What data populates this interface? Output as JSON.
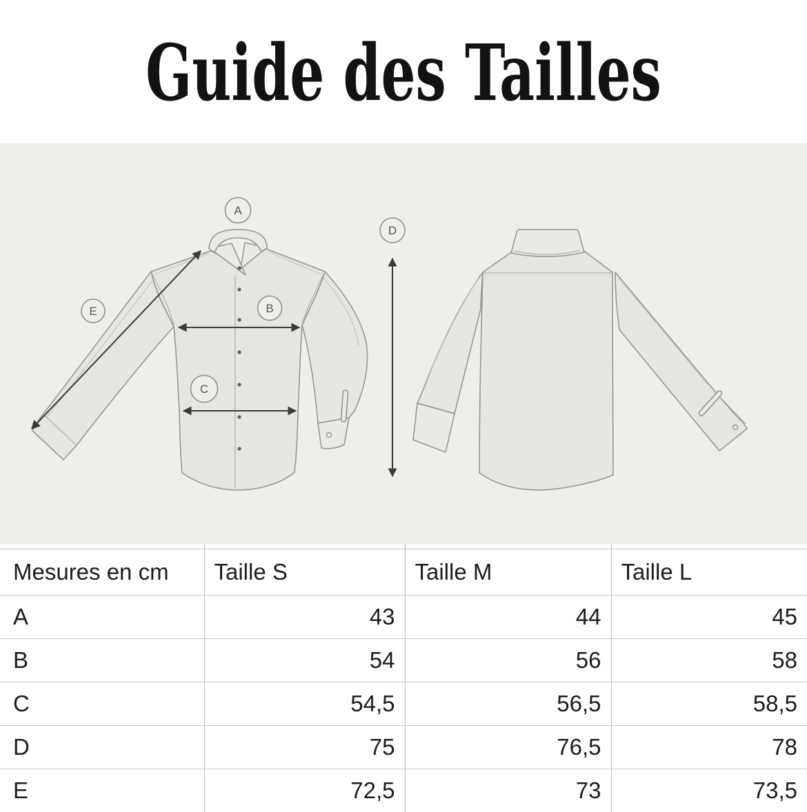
{
  "title": "Guide des Tailles",
  "diagram": {
    "markers": [
      {
        "label": "A"
      },
      {
        "label": "B"
      },
      {
        "label": "C"
      },
      {
        "label": "D"
      },
      {
        "label": "E"
      }
    ],
    "views": [
      "shirt-front",
      "shirt-back"
    ]
  },
  "table": {
    "columns": [
      "Mesures en cm",
      "Taille S",
      "Taille M",
      "Taille L"
    ],
    "rows": [
      {
        "label": "A",
        "values": [
          "43",
          "44",
          "45"
        ]
      },
      {
        "label": "B",
        "values": [
          "54",
          "56",
          "58"
        ]
      },
      {
        "label": "C",
        "values": [
          "54,5",
          "56,5",
          "58,5"
        ]
      },
      {
        "label": "D",
        "values": [
          "75",
          "76,5",
          "78"
        ]
      },
      {
        "label": "E",
        "values": [
          "72,5",
          "73",
          "73,5"
        ]
      }
    ]
  },
  "colors": {
    "panel_bg": "#efeee9",
    "shirt_fill": "#e6e5e0",
    "shirt_line": "#97958e",
    "arrow": "#3b3a37",
    "table_hline": "#c8c7c3",
    "table_vline": "#b9b8b4",
    "text": "#1c1c1b",
    "title": "#121212"
  }
}
